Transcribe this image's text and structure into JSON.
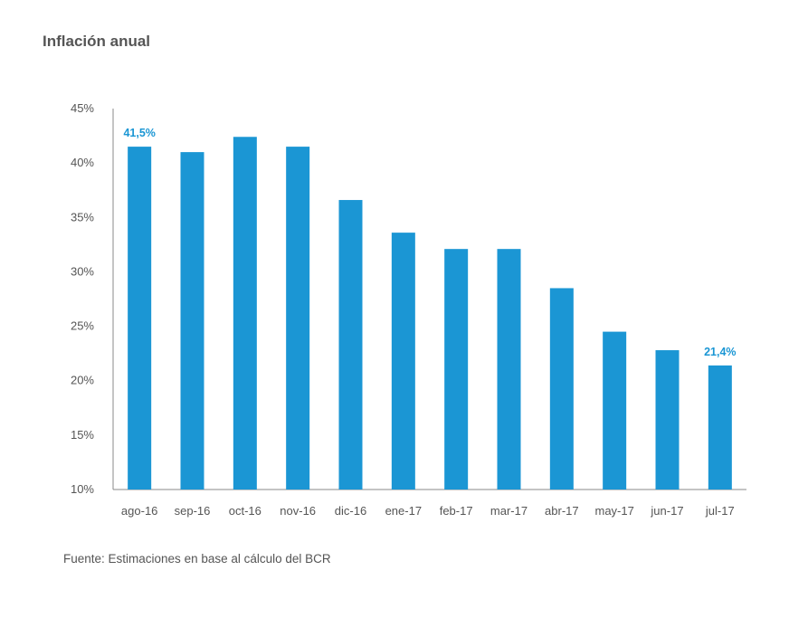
{
  "title": "Inflación anual",
  "source": "Fuente: Estimaciones en base al cálculo del BCR",
  "colors": {
    "bar": "#1b96d4",
    "axis": "#8a8a8a",
    "text": "#555555",
    "label": "#1a96d4"
  },
  "chart_data": {
    "type": "bar",
    "title": "Inflación anual",
    "xlabel": "",
    "ylabel": "",
    "ylim": [
      10,
      45
    ],
    "y_ticks": [
      "10%",
      "15%",
      "20%",
      "25%",
      "30%",
      "35%",
      "40%",
      "45%"
    ],
    "y_tick_values": [
      10,
      15,
      20,
      25,
      30,
      35,
      40,
      45
    ],
    "categories": [
      "ago-16",
      "sep-16",
      "oct-16",
      "nov-16",
      "dic-16",
      "ene-17",
      "feb-17",
      "mar-17",
      "abr-17",
      "may-17",
      "jun-17",
      "jul-17"
    ],
    "values": [
      41.5,
      41.0,
      42.4,
      41.5,
      36.6,
      33.6,
      32.1,
      32.1,
      28.5,
      24.5,
      22.8,
      21.4
    ],
    "data_labels": [
      {
        "index": 0,
        "text": "41,5%"
      },
      {
        "index": 11,
        "text": "21,4%"
      }
    ],
    "grid": false,
    "legend": "none"
  }
}
